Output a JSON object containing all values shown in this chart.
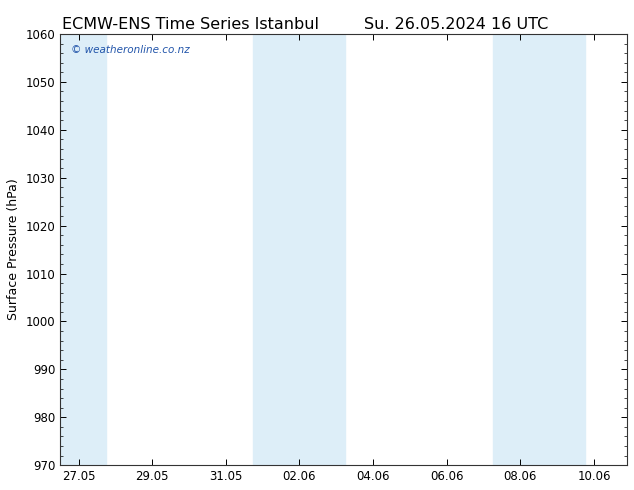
{
  "title_left": "ECMW-ENS Time Series Istanbul",
  "title_right": "Su. 26.05.2024 16 UTC",
  "ylabel": "Surface Pressure (hPa)",
  "ylim": [
    970,
    1060
  ],
  "yticks": [
    970,
    980,
    990,
    1000,
    1010,
    1020,
    1030,
    1040,
    1050,
    1060
  ],
  "xtick_labels": [
    "27.05",
    "29.05",
    "31.05",
    "02.06",
    "04.06",
    "06.06",
    "08.06",
    "10.06"
  ],
  "xtick_positions": [
    0,
    2,
    4,
    6,
    8,
    10,
    12,
    14
  ],
  "x_min": -0.5,
  "x_max": 14.9,
  "background_color": "#ffffff",
  "plot_bg_color": "#ffffff",
  "shaded_bands": [
    {
      "x_start": -0.5,
      "x_end": 0.75
    },
    {
      "x_start": 4.75,
      "x_end": 7.25
    },
    {
      "x_start": 11.25,
      "x_end": 13.75
    }
  ],
  "shaded_color": "#ddeef8",
  "border_color": "#333333",
  "watermark_text": "© weatheronline.co.nz",
  "watermark_color": "#2255aa",
  "title_fontsize": 11.5,
  "label_fontsize": 9,
  "tick_fontsize": 8.5
}
